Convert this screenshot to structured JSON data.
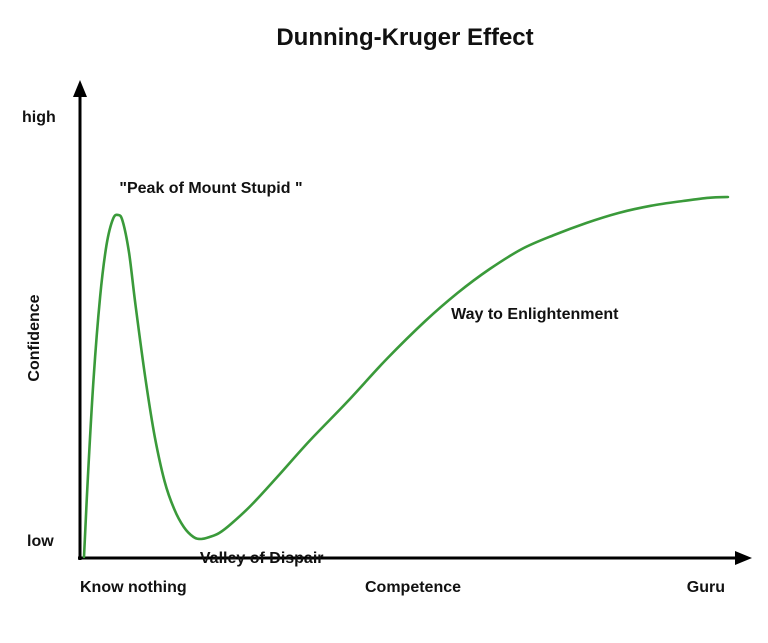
{
  "chart_data": {
    "type": "line",
    "title": "Dunning-Kruger Effect",
    "xlabel": "Competence",
    "ylabel": "Confidence",
    "x_tick_labels": [
      "Know nothing",
      "Competence",
      "Guru"
    ],
    "y_tick_labels": [
      "high",
      "low"
    ],
    "xlim": [
      0,
      100
    ],
    "ylim": [
      0,
      100
    ],
    "grid": false,
    "axis_arrows": true,
    "line_color": "#3a9a3a",
    "series": [
      {
        "x": [
          0.0,
          0.6,
          1.5,
          2.5,
          3.5,
          4.5,
          5.3,
          6.0,
          7.0,
          8.0,
          9.5,
          11.0,
          12.5,
          14.0,
          15.5,
          17.0,
          18.2,
          19.5,
          21.0,
          23.0,
          26.0,
          30.0,
          35.0,
          41.0,
          47.0,
          53.0,
          58.0,
          63.0,
          68.0,
          73.0,
          78.0,
          83.0,
          88.0,
          93.0,
          97.0,
          100.0
        ],
        "y": [
          0.0,
          20.0,
          45.0,
          65.0,
          78.0,
          84.5,
          85.5,
          84.0,
          76.0,
          63.0,
          45.0,
          30.0,
          19.0,
          12.0,
          7.5,
          5.0,
          4.5,
          5.0,
          6.0,
          8.5,
          13.0,
          20.0,
          29.0,
          39.0,
          49.5,
          59.0,
          66.0,
          72.0,
          77.0,
          80.5,
          83.5,
          86.0,
          87.8,
          89.0,
          89.8,
          90.0
        ]
      }
    ],
    "annotations": [
      {
        "text": "\"Peak of Mount Stupid \"",
        "x": 5.5,
        "y": 91
      },
      {
        "text": "Valley of Dispair",
        "x": 18,
        "y": -1.5
      },
      {
        "text": "Way to Enlightenment",
        "x": 57,
        "y": 59.5
      }
    ]
  }
}
